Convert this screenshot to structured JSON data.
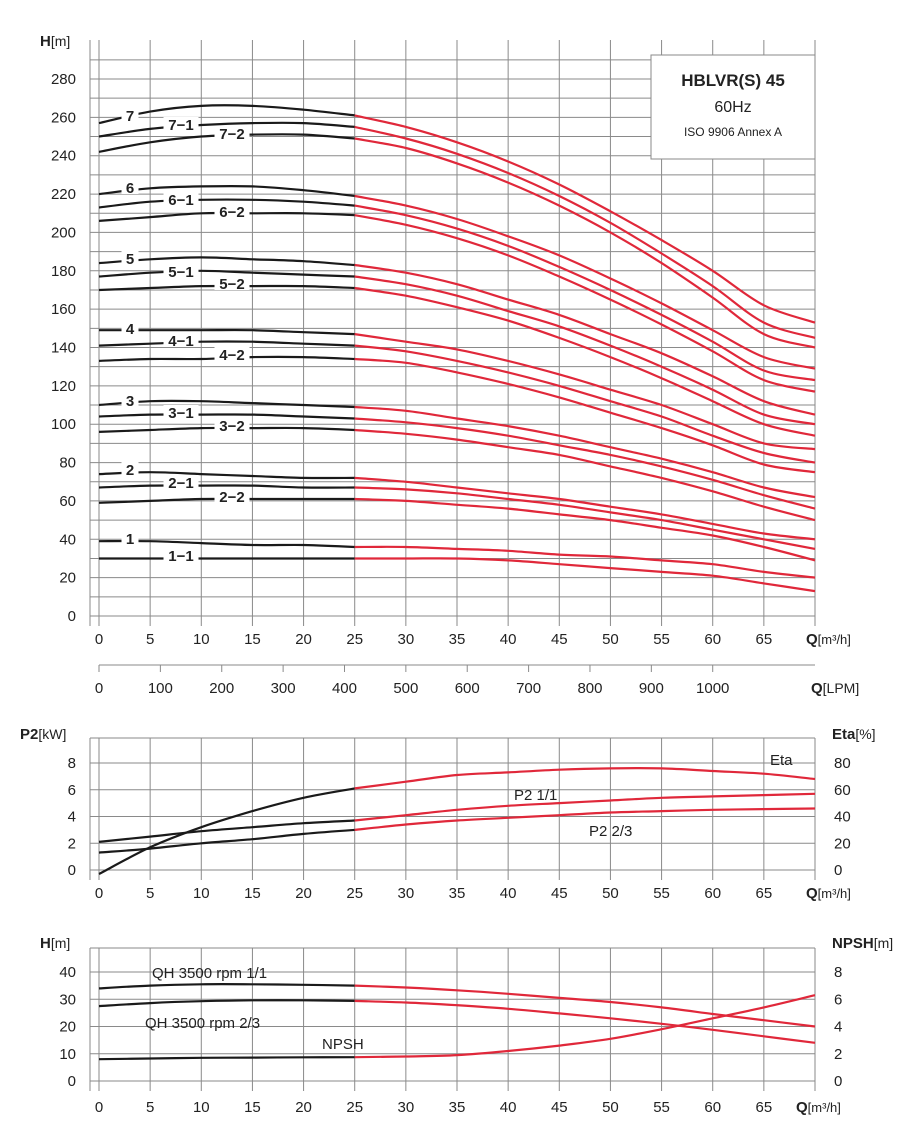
{
  "colors": {
    "black": "#1a1a1a",
    "red": "#e0283a",
    "grid": "#8a8a8a",
    "text": "#222222"
  },
  "title_box": {
    "line1": "HBLVR(S) 45",
    "line2": "60Hz",
    "line3": "ISO 9906 Annex A"
  },
  "chart_data": [
    {
      "id": "qh",
      "type": "line",
      "ylabel_main": "H",
      "ylabel_unit": "[m]",
      "xlabel_main": "Q",
      "xlabel_unit": "[m³/h]",
      "x2label_main": "Q",
      "x2label_unit": "[LPM]",
      "xlim": [
        0,
        70
      ],
      "ylim": [
        -5,
        295
      ],
      "xticks": [
        0,
        5,
        10,
        15,
        20,
        25,
        30,
        35,
        40,
        45,
        50,
        55,
        60,
        65
      ],
      "yticks": [
        0,
        20,
        40,
        60,
        80,
        100,
        120,
        140,
        160,
        180,
        200,
        220,
        240,
        260,
        280
      ],
      "lpm_ticks": [
        0,
        100,
        200,
        300,
        400,
        500,
        600,
        700,
        800,
        900,
        1000
      ],
      "lpm_per_m3h": 16.6667,
      "red_from_x": 25,
      "grid": true,
      "series": [
        {
          "name": "7",
          "x": [
            0,
            5,
            10,
            15,
            20,
            25,
            30,
            35,
            40,
            45,
            50,
            55,
            60,
            65,
            70
          ],
          "y": [
            257,
            263,
            266,
            266,
            264,
            261,
            255,
            247,
            237,
            225,
            211,
            196,
            180,
            162,
            153
          ]
        },
        {
          "name": "7-1",
          "x": [
            0,
            5,
            10,
            15,
            20,
            25,
            30,
            35,
            40,
            45,
            50,
            55,
            60,
            65,
            70
          ],
          "y": [
            250,
            254,
            256,
            257,
            257,
            255,
            249,
            241,
            231,
            219,
            205,
            189,
            172,
            153,
            145
          ]
        },
        {
          "name": "7-2",
          "x": [
            0,
            5,
            10,
            15,
            20,
            25,
            30,
            35,
            40,
            45,
            50,
            55,
            60,
            65,
            70
          ],
          "y": [
            242,
            247,
            250,
            251,
            251,
            249,
            244,
            236,
            226,
            214,
            200,
            184,
            166,
            147,
            140
          ]
        },
        {
          "name": "6",
          "x": [
            0,
            5,
            10,
            15,
            20,
            25,
            30,
            35,
            40,
            45,
            50,
            55,
            60,
            65,
            70
          ],
          "y": [
            220,
            223,
            224,
            224,
            222,
            219,
            214,
            207,
            198,
            188,
            176,
            163,
            149,
            135,
            129
          ]
        },
        {
          "name": "6-1",
          "x": [
            0,
            5,
            10,
            15,
            20,
            25,
            30,
            35,
            40,
            45,
            50,
            55,
            60,
            65,
            70
          ],
          "y": [
            213,
            216,
            217,
            217,
            216,
            214,
            209,
            202,
            193,
            182,
            170,
            157,
            143,
            128,
            123
          ]
        },
        {
          "name": "6-2",
          "x": [
            0,
            5,
            10,
            15,
            20,
            25,
            30,
            35,
            40,
            45,
            50,
            55,
            60,
            65,
            70
          ],
          "y": [
            206,
            208,
            210,
            210,
            210,
            209,
            204,
            197,
            188,
            177,
            165,
            152,
            138,
            123,
            117
          ]
        },
        {
          "name": "5",
          "x": [
            0,
            5,
            10,
            15,
            20,
            25,
            30,
            35,
            40,
            45,
            50,
            55,
            60,
            65,
            70
          ],
          "y": [
            184,
            186,
            187,
            186,
            185,
            183,
            179,
            173,
            165,
            157,
            147,
            137,
            125,
            112,
            105
          ]
        },
        {
          "name": "5-1",
          "x": [
            0,
            5,
            10,
            15,
            20,
            25,
            30,
            35,
            40,
            45,
            50,
            55,
            60,
            65,
            70
          ],
          "y": [
            177,
            179,
            180,
            179,
            178,
            177,
            173,
            167,
            159,
            151,
            141,
            130,
            118,
            105,
            100
          ]
        },
        {
          "name": "5-2",
          "x": [
            0,
            5,
            10,
            15,
            20,
            25,
            30,
            35,
            40,
            45,
            50,
            55,
            60,
            65,
            70
          ],
          "y": [
            170,
            171,
            172,
            172,
            172,
            171,
            167,
            161,
            154,
            145,
            135,
            124,
            112,
            100,
            94
          ]
        },
        {
          "name": "4",
          "x": [
            0,
            5,
            10,
            15,
            20,
            25,
            30,
            35,
            40,
            45,
            50,
            55,
            60,
            65,
            70
          ],
          "y": [
            149,
            149,
            149,
            149,
            148,
            147,
            143,
            139,
            133,
            126,
            118,
            110,
            100,
            90,
            87
          ]
        },
        {
          "name": "4-1",
          "x": [
            0,
            5,
            10,
            15,
            20,
            25,
            30,
            35,
            40,
            45,
            50,
            55,
            60,
            65,
            70
          ],
          "y": [
            141,
            142,
            143,
            143,
            142,
            141,
            138,
            133,
            127,
            120,
            112,
            104,
            94,
            85,
            80
          ]
        },
        {
          "name": "4-2",
          "x": [
            0,
            5,
            10,
            15,
            20,
            25,
            30,
            35,
            40,
            45,
            50,
            55,
            60,
            65,
            70
          ],
          "y": [
            133,
            134,
            134,
            135,
            135,
            134,
            132,
            127,
            121,
            114,
            106,
            98,
            89,
            79,
            75
          ]
        },
        {
          "name": "3",
          "x": [
            0,
            5,
            10,
            15,
            20,
            25,
            30,
            35,
            40,
            45,
            50,
            55,
            60,
            65,
            70
          ],
          "y": [
            110,
            112,
            112,
            111,
            110,
            109,
            107,
            103,
            99,
            94,
            88,
            82,
            75,
            67,
            62
          ]
        },
        {
          "name": "3-1",
          "x": [
            0,
            5,
            10,
            15,
            20,
            25,
            30,
            35,
            40,
            45,
            50,
            55,
            60,
            65,
            70
          ],
          "y": [
            104,
            105,
            105,
            105,
            104,
            103,
            101,
            98,
            94,
            89,
            84,
            78,
            71,
            63,
            56
          ]
        },
        {
          "name": "3-2",
          "x": [
            0,
            5,
            10,
            15,
            20,
            25,
            30,
            35,
            40,
            45,
            50,
            55,
            60,
            65,
            70
          ],
          "y": [
            96,
            97,
            98,
            98,
            98,
            97,
            95,
            92,
            88,
            84,
            78,
            72,
            65,
            57,
            50
          ]
        },
        {
          "name": "2",
          "x": [
            0,
            5,
            10,
            15,
            20,
            25,
            30,
            35,
            40,
            45,
            50,
            55,
            60,
            65,
            70
          ],
          "y": [
            74,
            75,
            74,
            73,
            72,
            72,
            70,
            67,
            64,
            61,
            57,
            53,
            48,
            43,
            40
          ]
        },
        {
          "name": "2-1",
          "x": [
            0,
            5,
            10,
            15,
            20,
            25,
            30,
            35,
            40,
            45,
            50,
            55,
            60,
            65,
            70
          ],
          "y": [
            67,
            68,
            68,
            68,
            67,
            67,
            66,
            64,
            61,
            58,
            54,
            50,
            45,
            40,
            35
          ]
        },
        {
          "name": "2-2",
          "x": [
            0,
            5,
            10,
            15,
            20,
            25,
            30,
            35,
            40,
            45,
            50,
            55,
            60,
            65,
            70
          ],
          "y": [
            59,
            60,
            61,
            61,
            61,
            61,
            60,
            58,
            56,
            53,
            50,
            46,
            42,
            36,
            29
          ]
        },
        {
          "name": "1",
          "x": [
            0,
            5,
            10,
            15,
            20,
            25,
            30,
            35,
            40,
            45,
            50,
            55,
            60,
            65,
            70
          ],
          "y": [
            39,
            39,
            38,
            37,
            37,
            36,
            36,
            35,
            34,
            32,
            31,
            29,
            27,
            23,
            20
          ]
        },
        {
          "name": "1-1",
          "x": [
            0,
            5,
            10,
            15,
            20,
            25,
            30,
            35,
            40,
            45,
            50,
            55,
            60,
            65,
            70
          ],
          "y": [
            30,
            30,
            30,
            30,
            30,
            30,
            30,
            30,
            29,
            27,
            25,
            23,
            21,
            17,
            13
          ]
        }
      ]
    },
    {
      "id": "power",
      "type": "line",
      "ylabel_main": "P2",
      "ylabel_unit": "[kW]",
      "y2label_main": "Eta",
      "y2label_unit": "[%]",
      "xlabel_main": "Q",
      "xlabel_unit": "[m³/h]",
      "xlim": [
        0,
        70
      ],
      "ylim": [
        0,
        10
      ],
      "y2lim": [
        0,
        100
      ],
      "xticks": [
        0,
        5,
        10,
        15,
        20,
        25,
        30,
        35,
        40,
        45,
        50,
        55,
        60,
        65,
        70
      ],
      "yticks": [
        0,
        2,
        4,
        6,
        8
      ],
      "y2ticks": [
        0,
        20,
        40,
        60,
        80
      ],
      "red_from_x": 25,
      "grid": true,
      "series": [
        {
          "name": "Eta",
          "axis": "y2",
          "x": [
            0,
            5,
            10,
            15,
            20,
            25,
            30,
            35,
            40,
            45,
            50,
            55,
            60,
            65,
            70
          ],
          "y": [
            -3,
            17,
            32,
            44,
            54,
            61,
            66,
            71,
            73,
            75,
            76,
            76,
            74,
            72,
            68
          ]
        },
        {
          "name": "P2 1/1",
          "axis": "y",
          "x": [
            0,
            5,
            10,
            15,
            20,
            25,
            30,
            35,
            40,
            45,
            50,
            55,
            60,
            65,
            70
          ],
          "y": [
            2.1,
            2.5,
            2.9,
            3.2,
            3.5,
            3.7,
            4.1,
            4.5,
            4.8,
            5.0,
            5.2,
            5.4,
            5.5,
            5.6,
            5.7
          ]
        },
        {
          "name": "P2 2/3",
          "axis": "y",
          "x": [
            0,
            5,
            10,
            15,
            20,
            25,
            30,
            35,
            40,
            45,
            50,
            55,
            60,
            65,
            70
          ],
          "y": [
            1.3,
            1.6,
            2.0,
            2.3,
            2.7,
            3.0,
            3.4,
            3.7,
            3.9,
            4.1,
            4.3,
            4.4,
            4.5,
            4.55,
            4.6
          ]
        }
      ]
    },
    {
      "id": "npsh",
      "type": "line",
      "ylabel_main": "H",
      "ylabel_unit": "[m]",
      "y2label_main": "NPSH",
      "y2label_unit": "[m]",
      "xlabel_main": "Q",
      "xlabel_unit": "[m³/h]",
      "xlim": [
        0,
        70
      ],
      "ylim": [
        0,
        50
      ],
      "y2lim": [
        0,
        10
      ],
      "xticks": [
        0,
        5,
        10,
        15,
        20,
        25,
        30,
        35,
        40,
        45,
        50,
        55,
        60,
        65,
        70
      ],
      "yticks": [
        0,
        10,
        20,
        30,
        40
      ],
      "y2ticks": [
        0,
        2,
        4,
        6,
        8
      ],
      "red_from_x": 25,
      "grid": true,
      "series": [
        {
          "name": "QH 3500 rpm 1/1",
          "axis": "y",
          "x": [
            0,
            5,
            10,
            15,
            20,
            25,
            30,
            35,
            40,
            45,
            50,
            55,
            60,
            65,
            70
          ],
          "y": [
            34,
            35,
            35.5,
            35.5,
            35.3,
            35,
            34.3,
            33.3,
            32,
            30.5,
            29,
            27,
            24.6,
            22.3,
            20
          ]
        },
        {
          "name": "QH 3500 rpm 2/3",
          "axis": "y",
          "x": [
            0,
            5,
            10,
            15,
            20,
            25,
            30,
            35,
            40,
            45,
            50,
            55,
            60,
            65,
            70
          ],
          "y": [
            27.5,
            28.6,
            29.3,
            29.6,
            29.6,
            29.4,
            28.8,
            27.8,
            26.5,
            24.8,
            23,
            21,
            18.8,
            16.4,
            14
          ]
        },
        {
          "name": "NPSH",
          "axis": "y2",
          "x": [
            0,
            5,
            10,
            15,
            20,
            25,
            30,
            35,
            40,
            45,
            50,
            55,
            60,
            65,
            70
          ],
          "y": [
            1.6,
            1.65,
            1.7,
            1.72,
            1.74,
            1.75,
            1.8,
            1.9,
            2.2,
            2.6,
            3.1,
            3.8,
            4.6,
            5.4,
            6.3
          ]
        }
      ]
    }
  ],
  "curve_labels": {
    "qh": [
      "7",
      "7−1",
      "7−2",
      "6",
      "6−1",
      "6−2",
      "5",
      "5−1",
      "5−2",
      "4",
      "4−1",
      "4−2",
      "3",
      "3−1",
      "3−2",
      "2",
      "2−1",
      "2−2",
      "1",
      "1−1"
    ],
    "power": [
      "Eta",
      "P2  1/1",
      "P2  2/3"
    ],
    "npsh": [
      "QH  3500  rpm  1/1",
      "QH  3500  rpm  2/3",
      "NPSH"
    ]
  }
}
